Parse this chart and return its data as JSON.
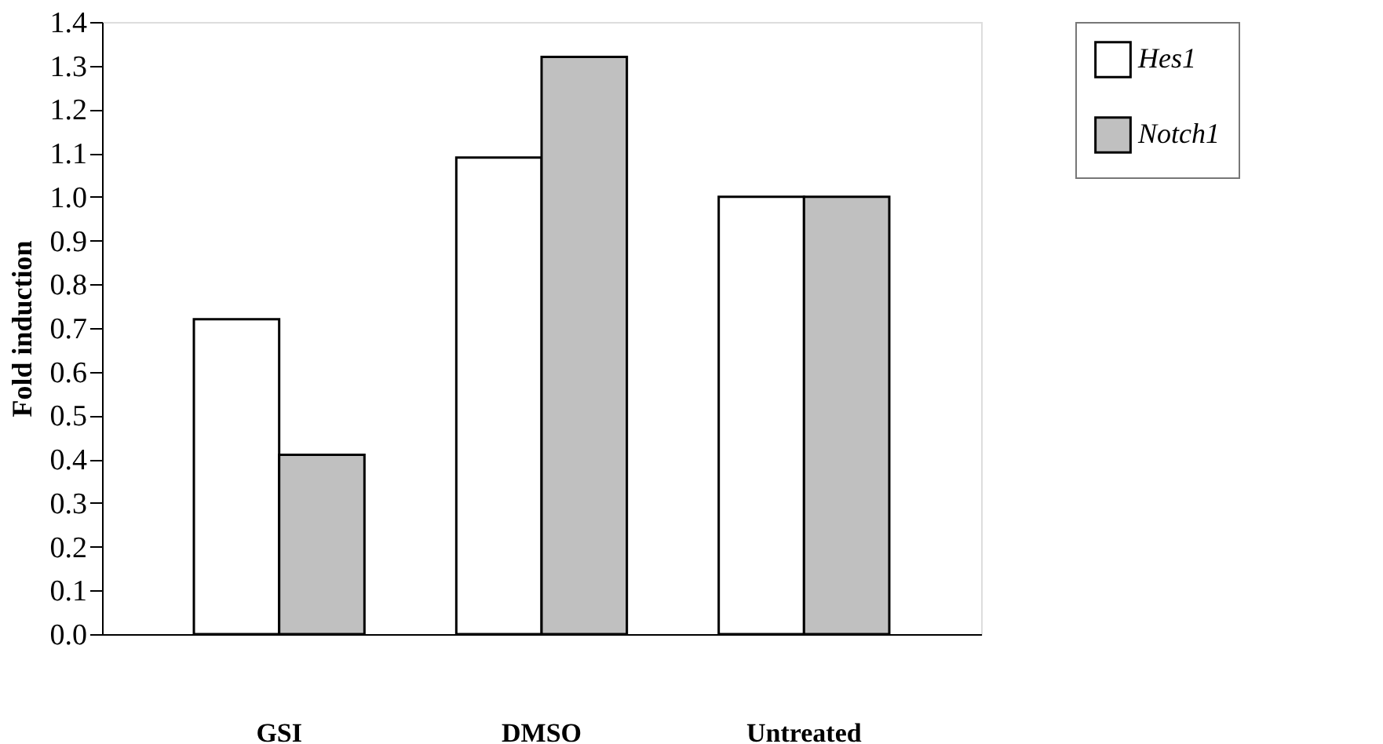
{
  "chart_data": {
    "type": "bar",
    "ylabel": "Fold induction",
    "categories": [
      "GSI",
      "DMSO",
      "Untreated"
    ],
    "series": [
      {
        "name": "Hes1",
        "color": "#ffffff",
        "values": [
          0.72,
          1.09,
          1.0
        ]
      },
      {
        "name": "Notch1",
        "color": "#c0c0c0",
        "values": [
          0.41,
          1.32,
          1.0
        ]
      }
    ],
    "ylim": [
      0,
      1.4
    ],
    "yticks": [
      {
        "value": 0,
        "label": "0.0"
      },
      {
        "value": 0.1,
        "label": "0.1"
      },
      {
        "value": 0.2,
        "label": "0.2"
      },
      {
        "value": 0.3,
        "label": "0.3"
      },
      {
        "value": 0.4,
        "label": "0.4"
      },
      {
        "value": 0.5,
        "label": "0.5"
      },
      {
        "value": 0.6,
        "label": "0.6"
      },
      {
        "value": 0.7,
        "label": "0.7"
      },
      {
        "value": 0.8,
        "label": "0.8"
      },
      {
        "value": 0.9,
        "label": "0.9"
      },
      {
        "value": 1.0,
        "label": "1.0"
      },
      {
        "value": 1.1,
        "label": "1.1"
      },
      {
        "value": 1.2,
        "label": "1.2"
      },
      {
        "value": 1.3,
        "label": "1.3"
      },
      {
        "value": 1.4,
        "label": "1.4"
      }
    ],
    "grid": false,
    "legend": "right"
  }
}
